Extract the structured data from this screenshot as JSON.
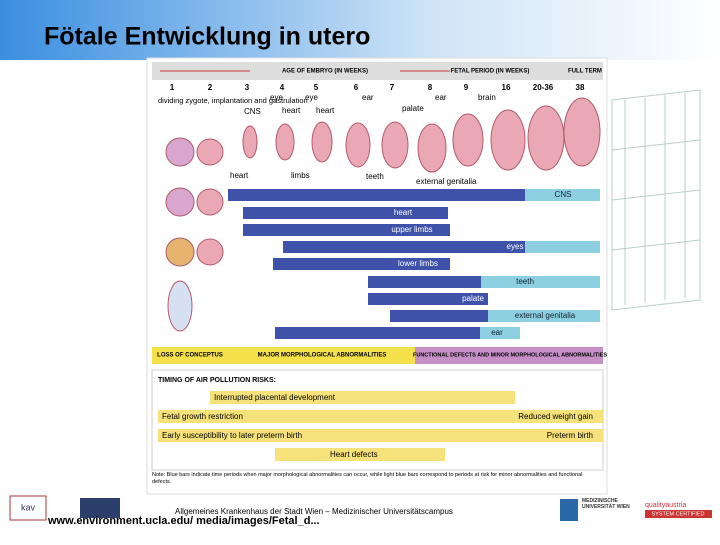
{
  "header": {
    "title": "Fötale Entwicklung in utero"
  },
  "figure": {
    "embryo_period": "AGE OF EMBRYO (IN WEEKS)",
    "fetal_period": "FETAL PERIOD (IN WEEKS)",
    "full_term": "FULL TERM",
    "weeks": [
      "1",
      "2",
      "3",
      "4",
      "5",
      "6",
      "7",
      "8",
      "9",
      "16",
      "20-36",
      "38"
    ],
    "top_labels": [
      "dividing zygote, implantation and gastrulation",
      "eye",
      "CNS",
      "heart",
      "eye",
      "heart",
      "ear",
      "palate",
      "ear",
      "brain"
    ],
    "bottom_labels": [
      "heart",
      "limbs",
      "teeth",
      "external genitalia"
    ],
    "bars": [
      "CNS",
      "heart",
      "upper limbs",
      "eyes",
      "lower limbs",
      "teeth",
      "palate",
      "external genitalia",
      "ear"
    ],
    "periods": [
      "LOSS OF CONCEPTUS",
      "MAJOR MORPHOLOGICAL ABNORMALITIES",
      "FUNCTIONAL DEFECTS AND MINOR MORPHOLOGICAL ABNORMALITIES"
    ],
    "risks_title": "TIMING OF AIR POLLUTION RISKS:",
    "risks": [
      "Interrupted placental development",
      "Fetal growth restriction",
      "Reduced weight gain",
      "Early susceptibility to later preterm birth",
      "Preterm birth",
      "Heart defects"
    ],
    "note": "Note: Blue bars indicate time periods when major morphological abnormalities can occur, while light blue bars correspond to periods at risk for minor abnormalities and functional defects."
  },
  "footer": {
    "hospital": "Allgemeines Krankenhaus der Stadt Wien – Medizinischer Universitätscampus",
    "source": "www.environment.ucla.edu/ media/images/Fetal_d...",
    "kav": "kav",
    "meduni": "MEDIZINISCHE UNIVERSITÄT WIEN",
    "quality": "qualityaustria",
    "certified": "SYSTEM CERTIFIED"
  }
}
